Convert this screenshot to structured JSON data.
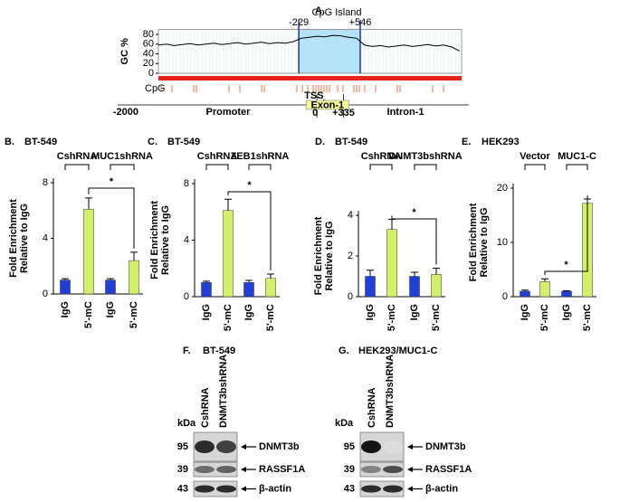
{
  "chart_data": [
    {
      "type": "line",
      "label": "A.",
      "ylabel": "GC %",
      "color": "#000000",
      "xlim": [
        -2000,
        1825
      ],
      "ylim": [
        0,
        90
      ],
      "yticks": [
        0,
        20,
        40,
        60,
        80
      ],
      "x": [
        -2000,
        -1900,
        -1800,
        -1700,
        -1600,
        -1500,
        -1400,
        -1300,
        -1200,
        -1100,
        -1000,
        -900,
        -800,
        -700,
        -600,
        -500,
        -400,
        -300,
        -200,
        -100,
        0,
        100,
        200,
        300,
        400,
        500,
        600,
        700,
        800,
        900,
        1000,
        1100,
        1200,
        1300,
        1400,
        1500,
        1600,
        1700,
        1800
      ],
      "values": [
        58,
        60,
        57,
        59,
        61,
        58,
        60,
        62,
        59,
        61,
        63,
        60,
        62,
        64,
        61,
        63,
        62,
        65,
        72,
        74,
        76,
        75,
        78,
        77,
        74,
        72,
        58,
        55,
        57,
        54,
        56,
        58,
        55,
        57,
        59,
        56,
        58,
        54,
        46
      ],
      "cpg_island": {
        "label": "CpG Island",
        "color": "#b3e3f5",
        "start": {
          "value": -229,
          "label": "-229"
        },
        "end": {
          "value": 546,
          "label": "+546"
        }
      },
      "cpg_track_label": "CpG",
      "gene_map": {
        "start": {
          "value": -2000,
          "label": "-2000"
        },
        "tss": 0,
        "tss_text": "TSS",
        "exon_label": "Exon-1",
        "exon_end": {
          "value": 335,
          "label": "+335"
        },
        "regions": [
          "Promoter",
          "Intron-1"
        ]
      }
    },
    {
      "type": "bar",
      "label": "B.",
      "title": "BT-549",
      "ylabel": [
        "Fold Enrichment",
        "Relative to IgG"
      ],
      "categories": [
        "IgG",
        "5'-mC",
        "IgG",
        "5'-mC"
      ],
      "values": [
        1.0,
        6.1,
        1.0,
        2.4
      ],
      "errors": [
        0.1,
        0.8,
        0.1,
        0.6
      ],
      "colors": [
        "#1f3fd6",
        "#d4ef6a",
        "#1f3fd6",
        "#d4ef6a"
      ],
      "ylim": [
        0,
        8
      ],
      "yticks": [
        0,
        4,
        8
      ],
      "groups": [
        "CshRNA",
        "MUC1shRNA"
      ],
      "significance": "*"
    },
    {
      "type": "bar",
      "label": "C.",
      "title": "BT-549",
      "ylabel": [
        "Fold Enrichment",
        "Relative to IgG"
      ],
      "categories": [
        "IgG",
        "5'-mC",
        "IgG",
        "5'-mC"
      ],
      "values": [
        1.0,
        6.1,
        1.0,
        1.3
      ],
      "errors": [
        0.1,
        0.8,
        0.15,
        0.3
      ],
      "colors": [
        "#1f3fd6",
        "#d4ef6a",
        "#1f3fd6",
        "#d4ef6a"
      ],
      "ylim": [
        0,
        8
      ],
      "yticks": [
        0,
        4,
        8
      ],
      "groups": [
        "CshRNA",
        "ZEB1shRNA"
      ],
      "significance": "*"
    },
    {
      "type": "bar",
      "label": "D.",
      "title": "BT-549",
      "ylabel": [
        "Fold Enrichment",
        "Relative to IgG"
      ],
      "categories": [
        "IgG",
        "5'-mC",
        "IgG",
        "5'-mC"
      ],
      "values": [
        1.0,
        3.3,
        1.0,
        1.1
      ],
      "errors": [
        0.3,
        0.5,
        0.2,
        0.3
      ],
      "colors": [
        "#1f3fd6",
        "#d4ef6a",
        "#1f3fd6",
        "#d4ef6a"
      ],
      "ylim": [
        0,
        4
      ],
      "yticks": [
        0,
        2,
        4
      ],
      "groups": [
        "CshRNA",
        "DNMT3bshRNA"
      ],
      "significance": "*"
    },
    {
      "type": "bar",
      "label": "E.",
      "title": "HEK293",
      "ylabel": [
        "Fold Enrichment",
        "Relative to IgG"
      ],
      "categories": [
        "IgG",
        "5'-mC",
        "IgG",
        "5'-mC"
      ],
      "values": [
        1.0,
        2.8,
        1.0,
        17.2
      ],
      "errors": [
        0.2,
        0.5,
        0.1,
        0.8
      ],
      "colors": [
        "#1f3fd6",
        "#d4ef6a",
        "#1f3fd6",
        "#d4ef6a"
      ],
      "ylim": [
        0,
        20
      ],
      "yticks": [
        0,
        10,
        20
      ],
      "groups": [
        "Vector",
        "MUC1-C"
      ],
      "significance": "*"
    }
  ],
  "blots": [
    {
      "label": "F.",
      "title": "BT-549",
      "unit": "kDa",
      "lanes": [
        "CshRNA",
        "DNMT3bshRNA"
      ],
      "rows": [
        {
          "kda": 95,
          "protein": "DNMT3b"
        },
        {
          "kda": 39,
          "protein": "RASSF1A"
        },
        {
          "kda": 43,
          "protein": "β-actin"
        }
      ]
    },
    {
      "label": "G.",
      "title": "HEK293/MUC1-C",
      "unit": "kDa",
      "lanes": [
        "CshRNA",
        "DNMT3bshRNA"
      ],
      "rows": [
        {
          "kda": 95,
          "protein": "DNMT3b"
        },
        {
          "kda": 39,
          "protein": "RASSF1A"
        },
        {
          "kda": 43,
          "protein": "β-actin"
        }
      ]
    }
  ]
}
